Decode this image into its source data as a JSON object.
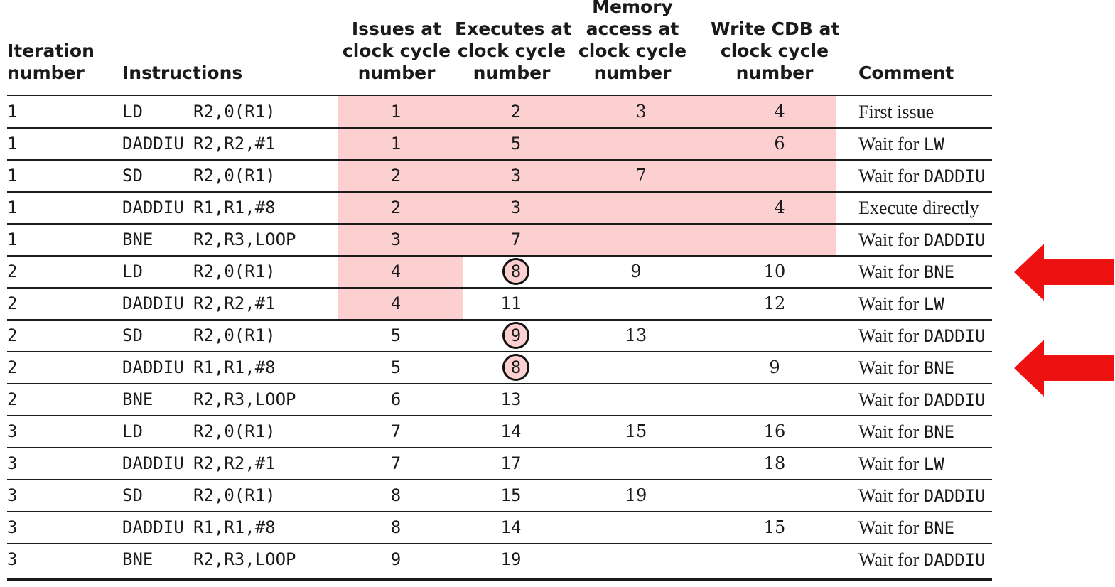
{
  "headers": {
    "iteration": [
      "Iteration",
      "number"
    ],
    "instructions": [
      "Instructions"
    ],
    "issues": [
      "Issues at",
      "clock cycle",
      "number"
    ],
    "executes": [
      "Executes at",
      "clock cycle",
      "number"
    ],
    "memory": [
      "Memory",
      "access at",
      "clock cycle",
      "number"
    ],
    "write": [
      "Write CDB at",
      "clock cycle",
      "number"
    ],
    "comment": [
      "Comment"
    ]
  },
  "rows": [
    {
      "iter": "1",
      "op": "LD",
      "args": "R2,0(R1)",
      "issue": "1",
      "exec": "2",
      "mem": "3",
      "wb": "4",
      "comment_text": "First issue",
      "comment_code": ""
    },
    {
      "iter": "1",
      "op": "DADDIU",
      "args": "R2,R2,#1",
      "issue": "1",
      "exec": "5",
      "mem": "",
      "wb": "6",
      "comment_text": "Wait for ",
      "comment_code": "LW"
    },
    {
      "iter": "1",
      "op": "SD",
      "args": "R2,0(R1)",
      "issue": "2",
      "exec": "3",
      "mem": "7",
      "wb": "",
      "comment_text": "Wait for ",
      "comment_code": "DADDIU"
    },
    {
      "iter": "1",
      "op": "DADDIU",
      "args": "R1,R1,#8",
      "issue": "2",
      "exec": "3",
      "mem": "",
      "wb": "4",
      "comment_text": "Execute directly",
      "comment_code": ""
    },
    {
      "iter": "1",
      "op": "BNE",
      "args": "R2,R3,LOOP",
      "issue": "3",
      "exec": "7",
      "mem": "",
      "wb": "",
      "comment_text": "Wait for ",
      "comment_code": "DADDIU"
    },
    {
      "iter": "2",
      "op": "LD",
      "args": "R2,0(R1)",
      "issue": "4",
      "exec": "8",
      "mem": "9",
      "wb": "10",
      "comment_text": "Wait for ",
      "comment_code": "BNE"
    },
    {
      "iter": "2",
      "op": "DADDIU",
      "args": "R2,R2,#1",
      "issue": "4",
      "exec": "11",
      "mem": "",
      "wb": "12",
      "comment_text": "Wait for ",
      "comment_code": "LW"
    },
    {
      "iter": "2",
      "op": "SD",
      "args": "R2,0(R1)",
      "issue": "5",
      "exec": "9",
      "mem": "13",
      "wb": "",
      "comment_text": "Wait for ",
      "comment_code": "DADDIU"
    },
    {
      "iter": "2",
      "op": "DADDIU",
      "args": "R1,R1,#8",
      "issue": "5",
      "exec": "8",
      "mem": "",
      "wb": "9",
      "comment_text": "Wait for ",
      "comment_code": "BNE"
    },
    {
      "iter": "2",
      "op": "BNE",
      "args": "R2,R3,LOOP",
      "issue": "6",
      "exec": "13",
      "mem": "",
      "wb": "",
      "comment_text": "Wait for ",
      "comment_code": "DADDIU"
    },
    {
      "iter": "3",
      "op": "LD",
      "args": "R2,0(R1)",
      "issue": "7",
      "exec": "14",
      "mem": "15",
      "wb": "16",
      "comment_text": "Wait for ",
      "comment_code": "BNE"
    },
    {
      "iter": "3",
      "op": "DADDIU",
      "args": "R2,R2,#1",
      "issue": "7",
      "exec": "17",
      "mem": "",
      "wb": "18",
      "comment_text": "Wait for ",
      "comment_code": "LW"
    },
    {
      "iter": "3",
      "op": "SD",
      "args": "R2,0(R1)",
      "issue": "8",
      "exec": "15",
      "mem": "19",
      "wb": "",
      "comment_text": "Wait for ",
      "comment_code": "DADDIU"
    },
    {
      "iter": "3",
      "op": "DADDIU",
      "args": "R1,R1,#8",
      "issue": "8",
      "exec": "14",
      "mem": "",
      "wb": "15",
      "comment_text": "Wait for ",
      "comment_code": "BNE"
    },
    {
      "iter": "3",
      "op": "BNE",
      "args": "R2,R3,LOOP",
      "issue": "9",
      "exec": "19",
      "mem": "",
      "wb": "",
      "comment_text": "Wait for ",
      "comment_code": "DADDIU"
    }
  ],
  "highlight": {
    "color": "#fccfd0",
    "circled_exec_rows": [
      5,
      7,
      8
    ],
    "arrow_rows": [
      5,
      8
    ],
    "arrow_color": "#ee1111"
  }
}
